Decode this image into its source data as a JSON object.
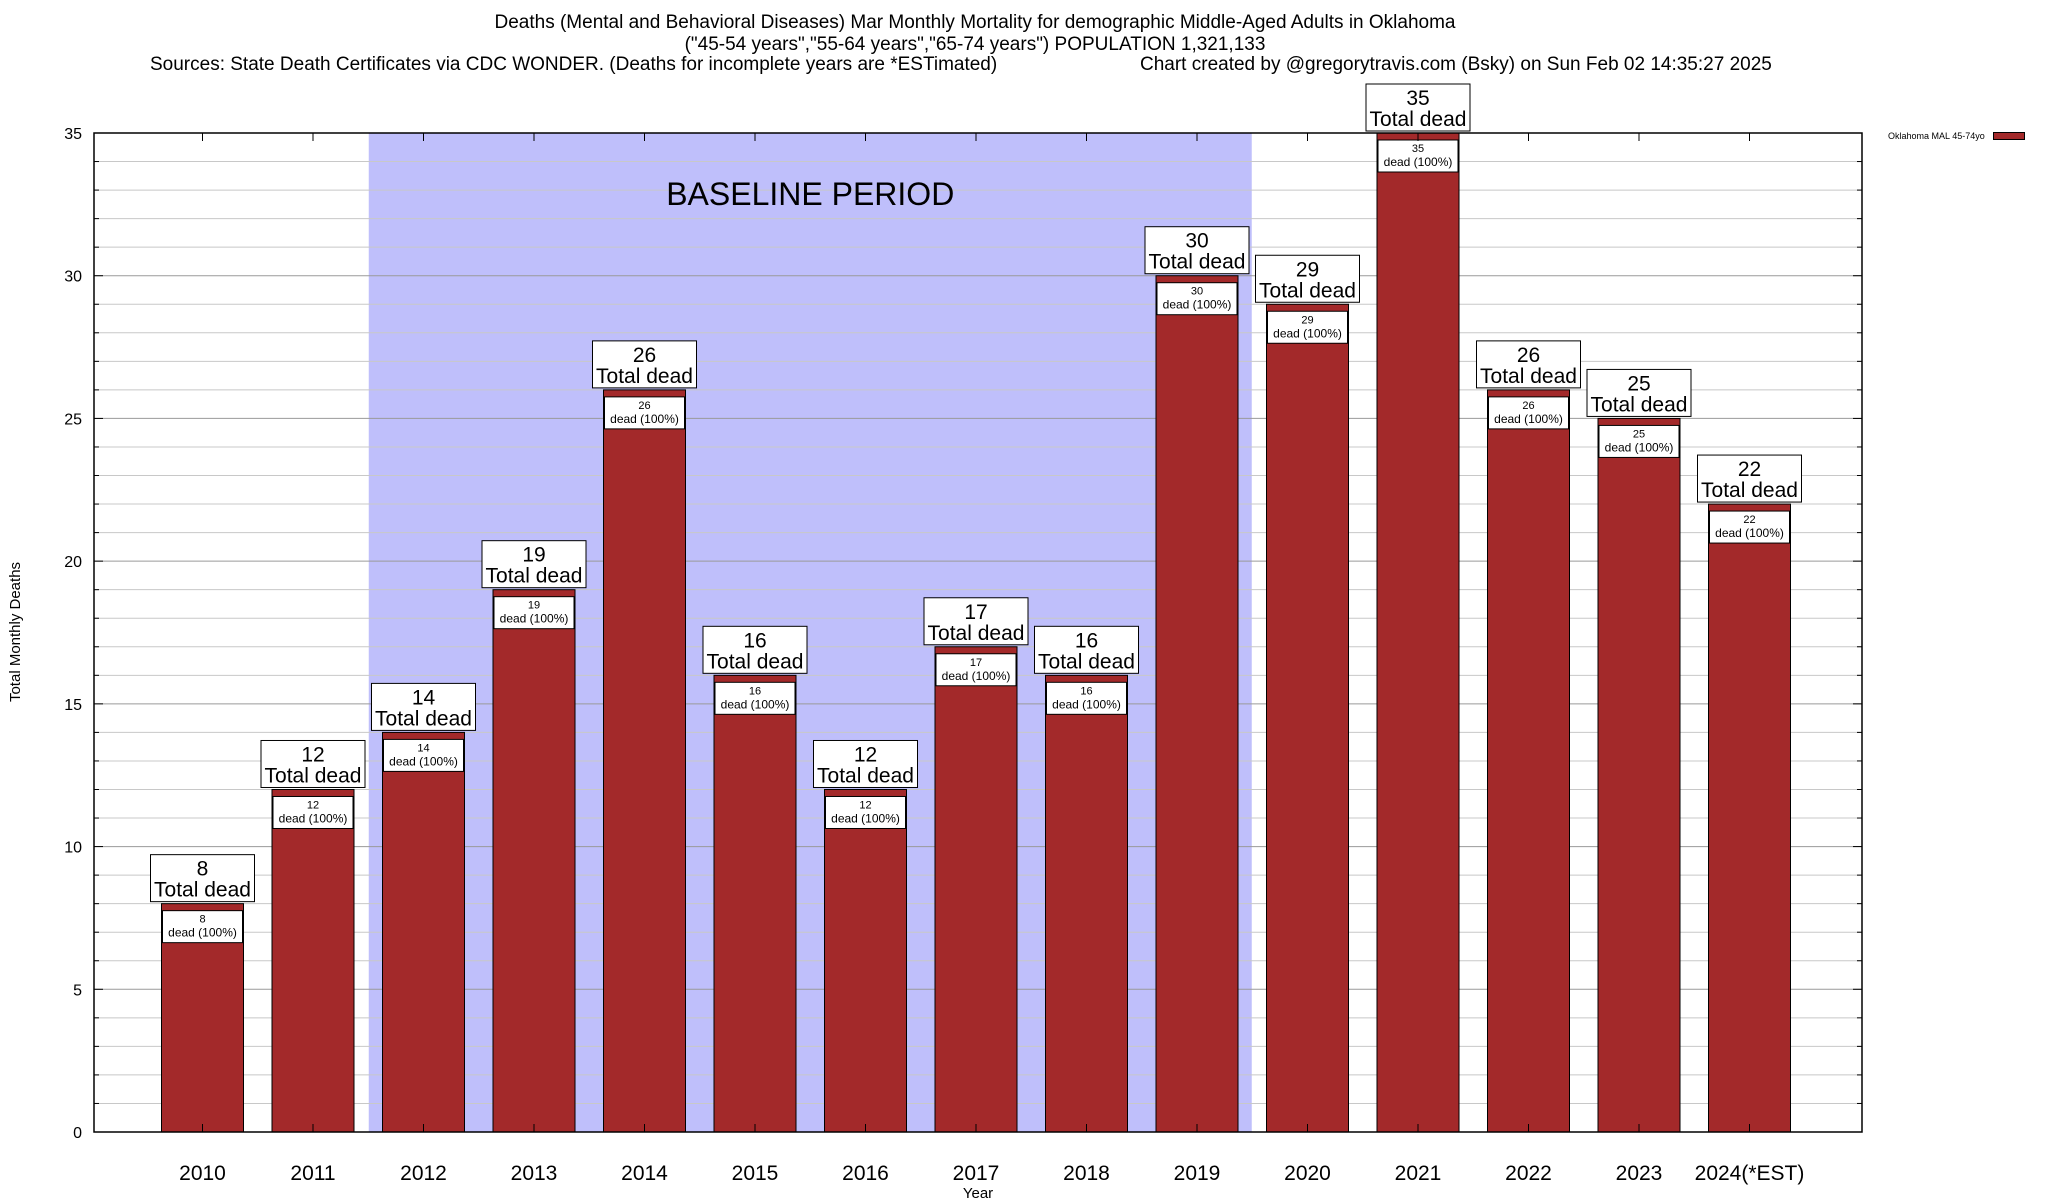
{
  "chart_data": {
    "type": "bar",
    "title": "Deaths (Mental and Behavioral Diseases) Mar Monthly Mortality for demographic Middle-Aged Adults in Oklahoma",
    "subtitle": "(\"45-54 years\",\"55-64 years\",\"65-74 years\") POPULATION 1,321,133",
    "source": "Sources: State Death Certificates via CDC WONDER. (Deaths for incomplete years are *ESTimated)",
    "credit": "Chart created by @gregorytravis.com (Bsky) on Sun Feb 02 14:35:27 2025",
    "xlabel": "Year",
    "ylabel": "Total Monthly Deaths",
    "ylim": [
      0,
      35
    ],
    "yticks": [
      0,
      5,
      10,
      15,
      20,
      25,
      30,
      35
    ],
    "grid": true,
    "categories": [
      "2010",
      "2011",
      "2012",
      "2013",
      "2014",
      "2015",
      "2016",
      "2017",
      "2018",
      "2019",
      "2020",
      "2021",
      "2022",
      "2023",
      "2024(*EST)"
    ],
    "series": [
      {
        "name": "Oklahoma MAL 45-74yo",
        "values": [
          8,
          12,
          14,
          19,
          26,
          16,
          12,
          17,
          16,
          30,
          29,
          35,
          26,
          25,
          22
        ],
        "color": "#a3292a"
      }
    ],
    "total_label": "Total dead",
    "inner_label_suffix": "dead (100%)",
    "baseline": {
      "label": "BASELINE PERIOD",
      "from": "2012",
      "to": "2019",
      "color": "#bfbffb"
    },
    "legend_position": "top-right"
  }
}
